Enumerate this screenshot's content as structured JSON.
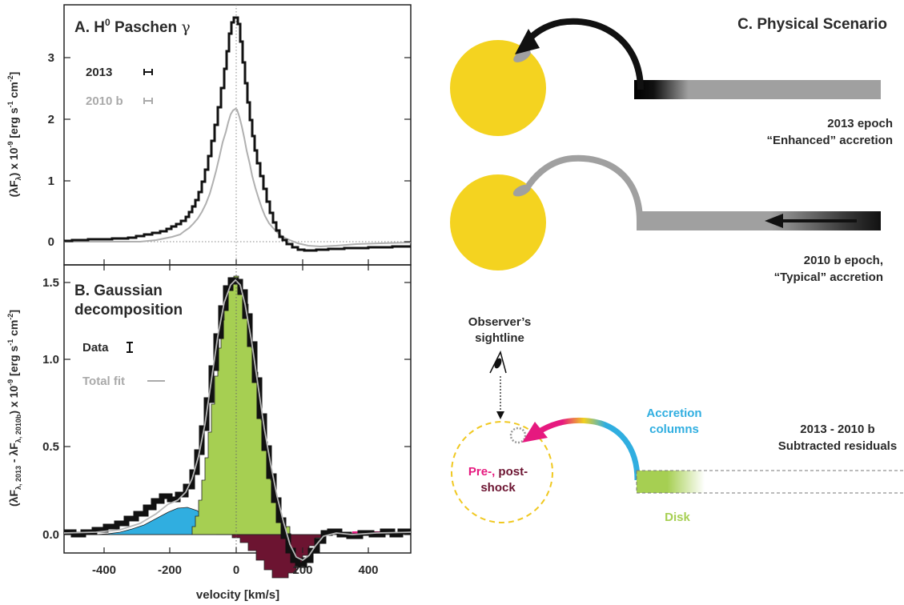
{
  "panel_a": {
    "title_prefix": "A. H",
    "title_sup": "0",
    "title_suffix": " Paschen ",
    "title_greek": "γ",
    "ylabel": "(λF  ) x 10   [erg s   cm  ]",
    "ylabel_sub": "λ",
    "ylabel_exp1": "-9",
    "ylabel_exp2": "-1",
    "ylabel_exp3": "-2",
    "yticks": [
      "0",
      "1",
      "2",
      "3"
    ],
    "legend": [
      {
        "label": "2013",
        "color": "#111111"
      },
      {
        "label": "2010 b",
        "color": "#aaaaaa"
      }
    ]
  },
  "panel_b": {
    "title_line1": "B. Gaussian",
    "title_line2": "decomposition",
    "ylabel": "(λF           - λF            ) x 10   [erg s   cm  ]",
    "ylabel_sub1": "λ, 2013",
    "ylabel_sub2": "λ, 2010b",
    "ylabel_exp1": "-9",
    "ylabel_exp2": "-1",
    "ylabel_exp3": "-2",
    "yticks": [
      "0.0",
      "0.5",
      "1.0",
      "1.5"
    ],
    "legend": [
      {
        "label": "Data",
        "color": "#111111"
      },
      {
        "label": "Total fit",
        "color": "#aaaaaa"
      }
    ]
  },
  "xaxis": {
    "label": "velocity [km/s]",
    "ticks": [
      "-400",
      "-200",
      "0",
      "200",
      "400"
    ]
  },
  "panel_c": {
    "title": "C. Physical Scenario",
    "epoch1_line1": "2013 epoch",
    "epoch1_line2": "“Enhanced” accretion",
    "epoch2_line1": "2010 b epoch,",
    "epoch2_line2": "“Typical” accretion",
    "observer_line1": "Observer’s",
    "observer_line2": "sightline",
    "accretion_line1": "Accretion",
    "accretion_line2": "columns",
    "residuals_line1": "2013 - 2010 b",
    "residuals_line2": "Subtracted residuals",
    "preshock_part1": "Pre-,",
    "preshock_part2": " post-",
    "preshock_line2": "shock",
    "disk": "Disk"
  },
  "colors": {
    "star": "#f4d320",
    "green": "#a6cf52",
    "blue": "#30aee0",
    "maroon": "#6c1431",
    "magenta": "#e6197f",
    "gray": "#a0a0a0",
    "black": "#111111"
  }
}
